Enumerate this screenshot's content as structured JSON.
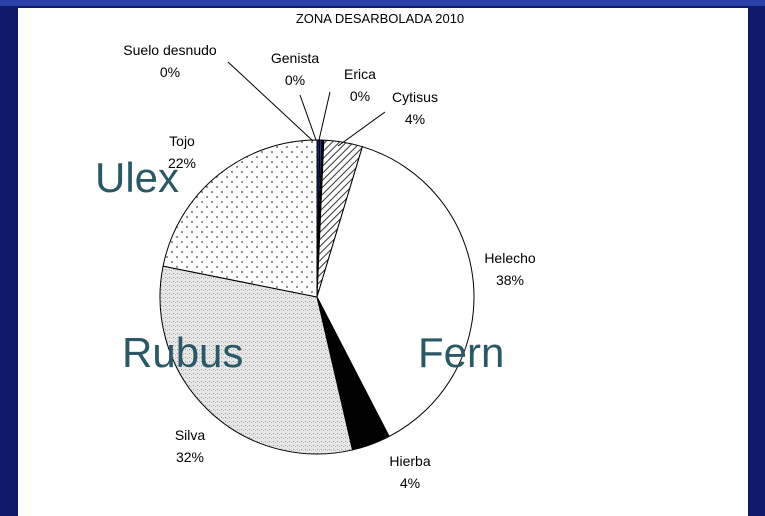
{
  "chart_data": {
    "type": "pie",
    "title": "ZONA DESARBOLADA 2010",
    "categories": [
      "Suelo desnudo",
      "Genista",
      "Erica",
      "Cytisus",
      "Helecho",
      "Hierba",
      "Silva",
      "Tojo"
    ],
    "values": [
      0.3,
      0.2,
      0.2,
      4,
      38,
      4,
      32,
      22
    ],
    "value_labels": [
      "0%",
      "0%",
      "0%",
      "4%",
      "38%",
      "4%",
      "32%",
      "22%"
    ],
    "colors": [
      "#1a1f6e",
      "#2f4fb8",
      "#000000",
      "#ffffff",
      "#ffffff",
      "#000000",
      "#e6e6e6",
      "#ffffff"
    ],
    "patterns": [
      null,
      null,
      null,
      "hatch",
      null,
      null,
      "stipple",
      "dots"
    ],
    "annotations": [
      "Ulex",
      "Rubus",
      "Fern"
    ]
  }
}
